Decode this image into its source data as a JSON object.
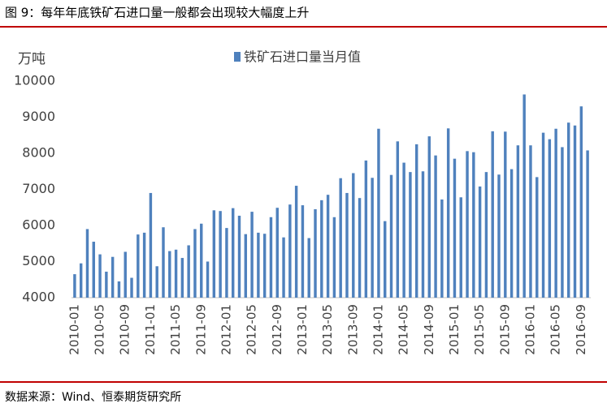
{
  "chart_data": {
    "type": "bar",
    "title": "图 9：每年年底铁矿石进口量一般都会出现较大幅度上升",
    "y_axis_label": "万吨",
    "source": "数据来源：Wind、恒泰期货研究所",
    "categories": [
      "2010-01",
      null,
      null,
      null,
      "2010-05",
      null,
      null,
      null,
      "2010-09",
      null,
      null,
      null,
      "2011-01",
      null,
      null,
      null,
      "2011-05",
      null,
      null,
      null,
      "2011-09",
      null,
      null,
      null,
      "2012-01",
      null,
      null,
      null,
      "2012-05",
      null,
      null,
      null,
      "2012-09",
      null,
      null,
      null,
      "2013-01",
      null,
      null,
      null,
      "2013-05",
      null,
      null,
      null,
      "2013-09",
      null,
      null,
      null,
      "2014-01",
      null,
      null,
      null,
      "2014-05",
      null,
      null,
      null,
      "2014-09",
      null,
      null,
      null,
      "2015-01",
      null,
      null,
      null,
      "2015-05",
      null,
      null,
      null,
      "2015-09",
      null,
      null,
      null,
      "2016-01",
      null,
      null,
      null,
      "2016-05",
      null,
      null,
      null,
      "2016-09",
      null
    ],
    "series": [
      {
        "name": "铁矿石进口量当月值",
        "color": "#4f81bd",
        "values": [
          4650,
          4950,
          5900,
          5550,
          5200,
          4720,
          5130,
          4450,
          5270,
          4550,
          5750,
          5800,
          6900,
          4870,
          5950,
          5290,
          5330,
          5100,
          5450,
          5900,
          6050,
          5000,
          6420,
          6400,
          5930,
          6480,
          6270,
          5760,
          6380,
          5800,
          5770,
          6230,
          6490,
          5670,
          6580,
          7100,
          6560,
          5650,
          6450,
          6700,
          6850,
          6230,
          7310,
          6900,
          7450,
          6760,
          7800,
          7320,
          8680,
          6120,
          7400,
          8330,
          7740,
          7480,
          8250,
          7500,
          8470,
          7940,
          6720,
          8690,
          7850,
          6780,
          8060,
          8030,
          7080,
          7480,
          8610,
          7410,
          8600,
          7560,
          8220,
          9630,
          8220,
          7340,
          8570,
          8390,
          8680,
          8170,
          8850,
          8770,
          9300,
          8080
        ]
      }
    ],
    "ylim": [
      4000,
      10000
    ],
    "yticks": [
      4000,
      5000,
      6000,
      7000,
      8000,
      9000,
      10000
    ],
    "legend": "top"
  }
}
